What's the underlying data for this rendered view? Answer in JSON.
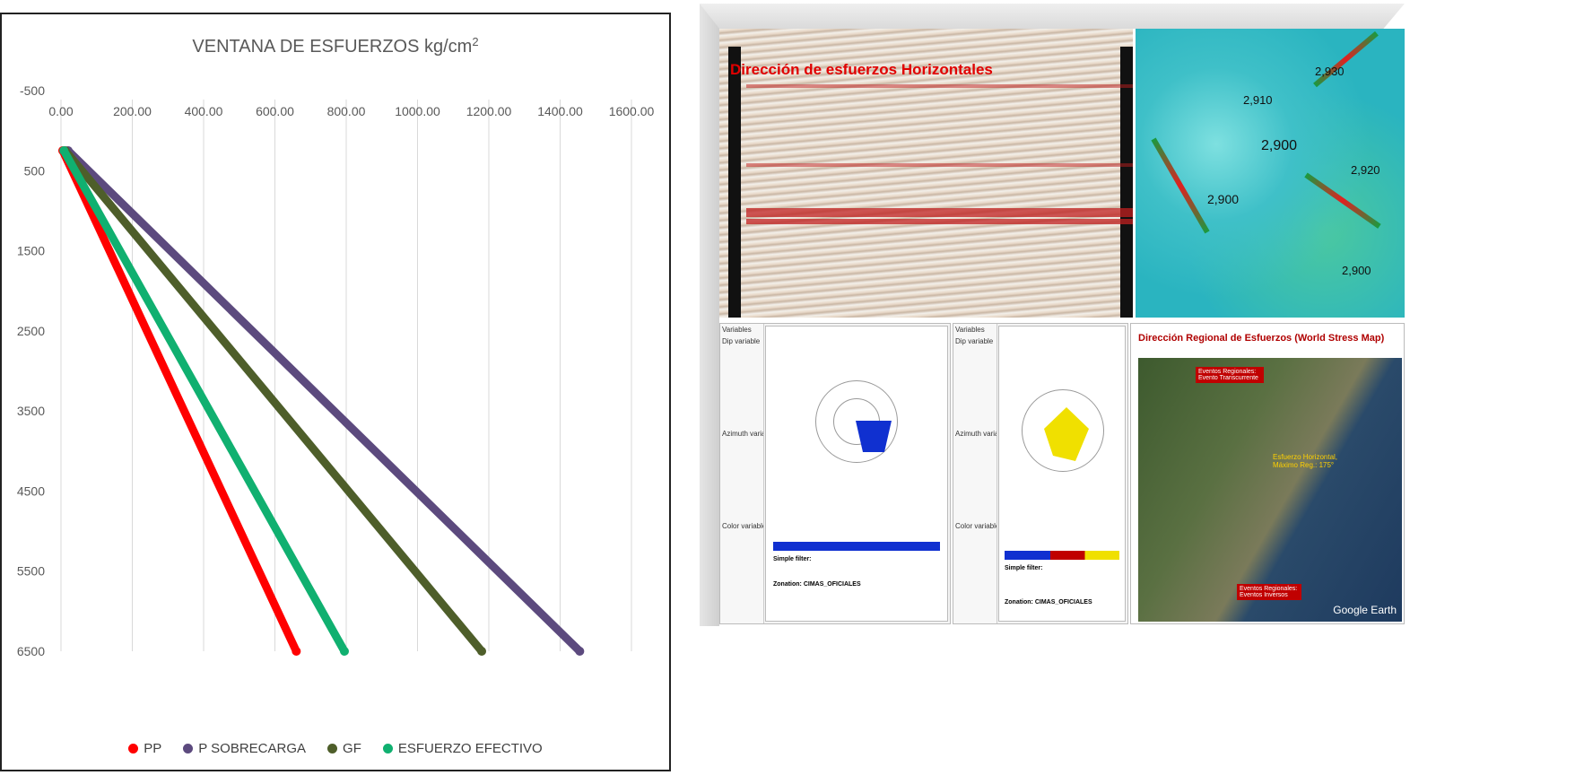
{
  "chart_data": {
    "type": "line",
    "title": "VENTANA DE ESFUERZOS kg/cm",
    "title_superscript": "2",
    "x_ticks": [
      "0.00",
      "200.00",
      "400.00",
      "600.00",
      "800.00",
      "1000.00",
      "1200.00",
      "1400.00",
      "1600.00"
    ],
    "y_ticks": [
      "-500",
      "500",
      "1500",
      "2500",
      "3500",
      "4500",
      "5500",
      "6500"
    ],
    "xlim": [
      0,
      1600
    ],
    "ylim": [
      -500,
      6500
    ],
    "y_inverted": true,
    "x_axis_position": "top",
    "legend_position": "bottom",
    "gridlines": "vertical",
    "series": [
      {
        "name": "PP",
        "color": "#ff0000",
        "x": [
          5,
          660
        ],
        "y": [
          250,
          6500
        ]
      },
      {
        "name": "P SOBRECARGA",
        "color": "#5c4a7e",
        "x": [
          20,
          1455
        ],
        "y": [
          250,
          6500
        ]
      },
      {
        "name": "GF",
        "color": "#4e5e2a",
        "x": [
          12,
          1180
        ],
        "y": [
          250,
          6500
        ]
      },
      {
        "name": "ESFUERZO EFECTIVO",
        "color": "#10b070",
        "x": [
          8,
          795
        ],
        "y": [
          250,
          6500
        ]
      }
    ]
  },
  "panels": {
    "seismic_title": "Dirección de esfuerzos Horizontales",
    "contours": [
      "2,900",
      "2,900",
      "2,900",
      "2,920",
      "2,910",
      "2,930"
    ],
    "rose1": {
      "tab": "Variables",
      "dip_var": "Dip variable",
      "az_var": "Azimuth variable",
      "color_var": "Color variable",
      "filter": "Simple filter:",
      "zonation": "Zonation: CIMAS_OFICIALES"
    },
    "rose2": {
      "tab": "Variables",
      "dip_var": "Dip variable",
      "az_var": "Azimuth variable",
      "color_var": "Color variable",
      "filter": "Simple filter:",
      "zonation": "Zonation: CIMAS_OFICIALES"
    },
    "earth": {
      "header": "Dirección Regional de Esfuerzos (World Stress Map)",
      "label_top": "Eventos Regionales: Evento Transcurrente",
      "label_mid": "Esfuerzo Horizontal, Máximo Reg.: 175°",
      "label_bot": "Eventos Regionales: Eventos Inversos",
      "brand": "Google Earth"
    }
  }
}
